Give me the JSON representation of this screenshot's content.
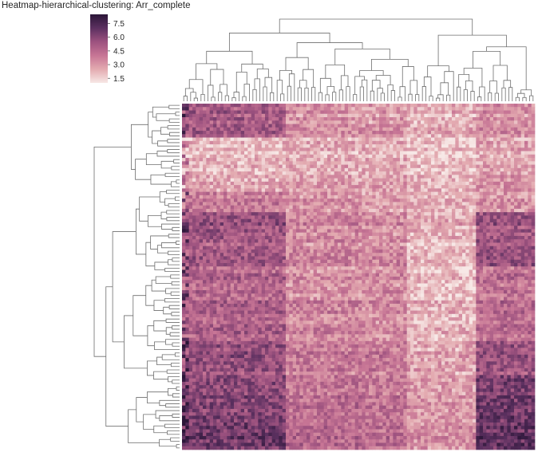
{
  "chart_data": {
    "type": "heatmap",
    "title": "Heatmap-hierarchical-clustering: Arr_complete",
    "xlabel": "",
    "ylabel": "",
    "grid": false,
    "colorbar": {
      "ticks": [
        "1.5",
        "3.0",
        "4.5",
        "6.0",
        "7.5"
      ],
      "range": [
        1.0,
        8.5
      ],
      "colors": [
        "#f7e8e6",
        "#e3aab0",
        "#c77595",
        "#9d527f",
        "#5c3060",
        "#2b1638"
      ]
    },
    "n_rows": 102,
    "n_cols": 102,
    "row_block_values": [
      {
        "rows": 10,
        "means": [
          5.0,
          3.2,
          3.0,
          2.4,
          3.2
        ]
      },
      {
        "rows": 16,
        "means": [
          2.2,
          2.5,
          2.5,
          2.0,
          2.8
        ]
      },
      {
        "rows": 6,
        "means": [
          3.8,
          3.0,
          2.6,
          2.2,
          3.0
        ]
      },
      {
        "rows": 8,
        "means": [
          5.5,
          3.6,
          3.4,
          2.6,
          5.4
        ]
      },
      {
        "rows": 8,
        "means": [
          5.0,
          3.4,
          3.4,
          2.0,
          5.3
        ]
      },
      {
        "rows": 10,
        "means": [
          4.6,
          3.2,
          3.3,
          2.0,
          4.2
        ]
      },
      {
        "rows": 12,
        "means": [
          4.8,
          3.6,
          3.4,
          2.3,
          4.4
        ]
      },
      {
        "rows": 10,
        "means": [
          5.5,
          3.8,
          3.8,
          2.6,
          5.4
        ]
      },
      {
        "rows": 12,
        "means": [
          5.9,
          4.2,
          4.0,
          3.0,
          6.4
        ]
      },
      {
        "rows": 10,
        "means": [
          6.5,
          4.4,
          4.2,
          3.1,
          6.8
        ]
      }
    ],
    "col_block_sizes": [
      30,
      22,
      13,
      20,
      17
    ]
  }
}
